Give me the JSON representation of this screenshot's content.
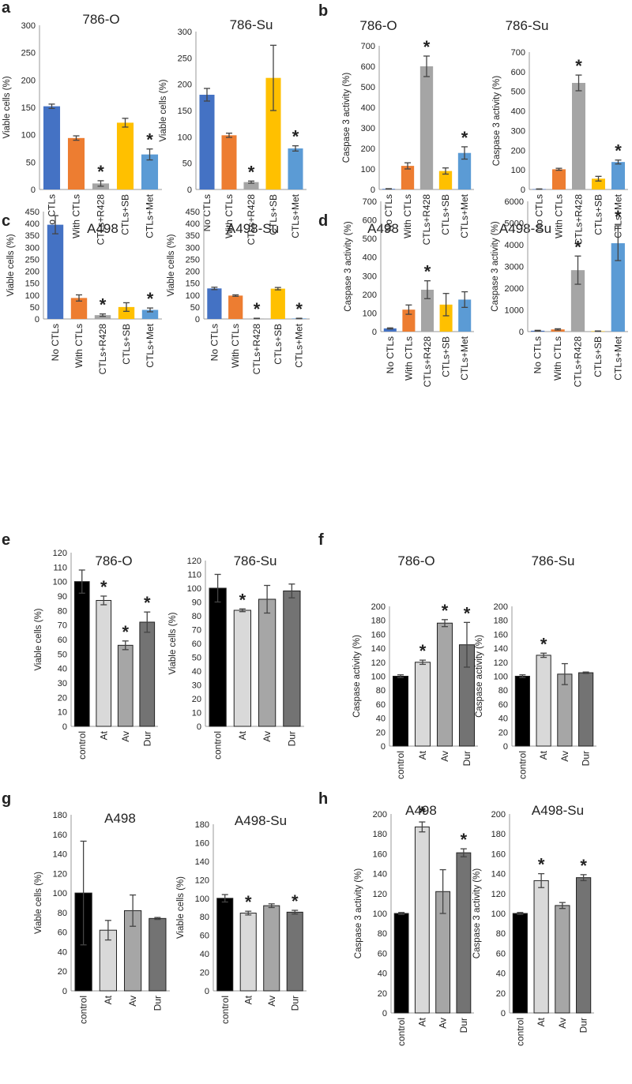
{
  "chart_data": [
    {
      "panel": "a",
      "type": "bar",
      "title": "786-O",
      "ylabel": "Viable cells (%)",
      "ylim": [
        0,
        300
      ],
      "yticks": [
        0,
        50,
        100,
        150,
        200,
        250,
        300
      ],
      "categories": [
        "No CTLs",
        "With CTLs",
        "CTLs+R428",
        "CTLs+SB",
        "CTLs+Met"
      ],
      "values": [
        152,
        94,
        11,
        122,
        64
      ],
      "errors": [
        4,
        4,
        5,
        8,
        10
      ],
      "significant": [
        false,
        false,
        true,
        false,
        true
      ],
      "colors": [
        "#4472C4",
        "#ED7D31",
        "#A5A5A5",
        "#FFC000",
        "#5B9BD5"
      ]
    },
    {
      "panel": "",
      "type": "bar",
      "title": "786-Su",
      "ylabel": "Viable cells (%)",
      "ylim": [
        0,
        300
      ],
      "yticks": [
        0,
        50,
        100,
        150,
        200,
        250,
        300
      ],
      "categories": [
        "No CTLs",
        "With CTLs",
        "CTLs+R428",
        "CTLs+SB",
        "CTLs+Met"
      ],
      "values": [
        180,
        103,
        14,
        212,
        78
      ],
      "errors": [
        12,
        4,
        2,
        62,
        5
      ],
      "significant": [
        false,
        false,
        true,
        false,
        true
      ],
      "colors": [
        "#4472C4",
        "#ED7D31",
        "#A5A5A5",
        "#FFC000",
        "#5B9BD5"
      ]
    },
    {
      "panel": "b",
      "type": "bar",
      "title": "786-O",
      "ylabel": "Caspase 3 activity (%)",
      "ylim": [
        0,
        700
      ],
      "yticks": [
        0,
        100,
        200,
        300,
        400,
        500,
        600,
        700
      ],
      "categories": [
        "No CTLs",
        "With CTLs",
        "CTLs+R428",
        "CTLs+SB",
        "CTLs+Met"
      ],
      "values": [
        3,
        115,
        600,
        90,
        178
      ],
      "errors": [
        1,
        15,
        50,
        15,
        30
      ],
      "significant": [
        false,
        false,
        true,
        false,
        true
      ],
      "colors": [
        "#4472C4",
        "#ED7D31",
        "#A5A5A5",
        "#FFC000",
        "#5B9BD5"
      ]
    },
    {
      "panel": "",
      "type": "bar",
      "title": "786-Su",
      "ylabel": "Caspase 3 activity (%)",
      "ylim": [
        0,
        700
      ],
      "yticks": [
        0,
        100,
        200,
        300,
        400,
        500,
        600,
        700
      ],
      "categories": [
        "No CTLs",
        "With CTLs",
        "CTLs+R428",
        "CTLs+SB",
        "CTLs+Met"
      ],
      "values": [
        2,
        103,
        543,
        55,
        140
      ],
      "errors": [
        1,
        5,
        40,
        12,
        10
      ],
      "significant": [
        false,
        false,
        true,
        false,
        true
      ],
      "colors": [
        "#4472C4",
        "#ED7D31",
        "#A5A5A5",
        "#FFC000",
        "#5B9BD5"
      ]
    },
    {
      "panel": "c",
      "type": "bar",
      "title": "A498",
      "ylabel": "Viable cells (%)",
      "ylim": [
        0,
        450
      ],
      "yticks": [
        0,
        50,
        100,
        150,
        200,
        250,
        300,
        350,
        400,
        450
      ],
      "categories": [
        "No CTLs",
        "With CTLs",
        "CTLs+R428",
        "CTLs+SB",
        "CTLs+Met"
      ],
      "values": [
        395,
        88,
        16,
        50,
        38
      ],
      "errors": [
        38,
        13,
        5,
        18,
        8
      ],
      "significant": [
        false,
        false,
        true,
        false,
        true
      ],
      "colors": [
        "#4472C4",
        "#ED7D31",
        "#A5A5A5",
        "#FFC000",
        "#5B9BD5"
      ]
    },
    {
      "panel": "",
      "type": "bar",
      "title": "A498-Su",
      "ylabel": "Viable cells (%)",
      "ylim": [
        0,
        450
      ],
      "yticks": [
        0,
        50,
        100,
        150,
        200,
        250,
        300,
        350,
        400,
        450
      ],
      "categories": [
        "No CTLs",
        "With CTLs",
        "CTLs+R428",
        "CTLs+SB",
        "CTLs+Met"
      ],
      "values": [
        128,
        98,
        2,
        127,
        2
      ],
      "errors": [
        5,
        3,
        1,
        5,
        1
      ],
      "significant": [
        false,
        false,
        true,
        false,
        true
      ],
      "colors": [
        "#4472C4",
        "#ED7D31",
        "#A5A5A5",
        "#FFC000",
        "#5B9BD5"
      ]
    },
    {
      "panel": "d",
      "type": "bar",
      "title": "A498",
      "ylabel": "Caspase 3 activity (%)",
      "ylim": [
        0,
        700
      ],
      "yticks": [
        0,
        100,
        200,
        300,
        400,
        500,
        600,
        700
      ],
      "categories": [
        "No CTLs",
        "With CTLs",
        "CTLs+R428",
        "CTLs+SB",
        "CTLs+Met"
      ],
      "values": [
        17,
        118,
        225,
        145,
        172
      ],
      "errors": [
        3,
        25,
        48,
        60,
        42
      ],
      "significant": [
        false,
        false,
        true,
        false,
        false
      ],
      "colors": [
        "#4472C4",
        "#ED7D31",
        "#A5A5A5",
        "#FFC000",
        "#5B9BD5"
      ]
    },
    {
      "panel": "",
      "type": "bar",
      "title": "A498-Su",
      "ylabel": "Caspase 3 activity (%)",
      "ylim": [
        0,
        6000
      ],
      "yticks": [
        0,
        1000,
        2000,
        3000,
        4000,
        5000,
        6000
      ],
      "categories": [
        "No CTLs",
        "With CTLs",
        "CTLs+R428",
        "CTLs+SB",
        "CTLs+Met"
      ],
      "values": [
        40,
        100,
        2830,
        20,
        4070
      ],
      "errors": [
        20,
        30,
        650,
        10,
        800
      ],
      "significant": [
        false,
        false,
        true,
        false,
        true
      ],
      "colors": [
        "#4472C4",
        "#ED7D31",
        "#A5A5A5",
        "#FFC000",
        "#5B9BD5"
      ]
    },
    {
      "panel": "e",
      "type": "bar",
      "title": "786-O",
      "ylabel": "Viable cells (%)",
      "ylim": [
        0,
        120
      ],
      "yticks": [
        0,
        10,
        20,
        30,
        40,
        50,
        60,
        70,
        80,
        90,
        100,
        110,
        120
      ],
      "categories": [
        "control",
        "At",
        "Av",
        "Dur"
      ],
      "values": [
        100,
        87,
        56,
        72
      ],
      "errors": [
        8,
        3,
        3,
        7
      ],
      "significant": [
        false,
        true,
        true,
        true
      ],
      "colors": [
        "#000000",
        "#D9D9D9",
        "#A6A6A6",
        "#737373"
      ]
    },
    {
      "panel": "",
      "type": "bar",
      "title": "786-Su",
      "ylabel": "Viable cells (%)",
      "ylim": [
        0,
        120
      ],
      "yticks": [
        0,
        10,
        20,
        30,
        40,
        50,
        60,
        70,
        80,
        90,
        100,
        110,
        120
      ],
      "categories": [
        "control",
        "At",
        "Av",
        "Dur"
      ],
      "values": [
        100,
        84,
        92,
        98
      ],
      "errors": [
        10,
        1,
        10,
        5
      ],
      "significant": [
        false,
        true,
        false,
        false
      ],
      "colors": [
        "#000000",
        "#D9D9D9",
        "#A6A6A6",
        "#737373"
      ]
    },
    {
      "panel": "f",
      "type": "bar",
      "title": "786-O",
      "ylabel": "Caspase activity (%)",
      "ylim": [
        0,
        200
      ],
      "yticks": [
        0,
        20,
        40,
        60,
        80,
        100,
        120,
        140,
        160,
        180,
        200
      ],
      "categories": [
        "control",
        "At",
        "Av",
        "Dur"
      ],
      "values": [
        100,
        120,
        176,
        145
      ],
      "errors": [
        2,
        3,
        5,
        32
      ],
      "significant": [
        false,
        true,
        true,
        true
      ],
      "colors": [
        "#000000",
        "#D9D9D9",
        "#A6A6A6",
        "#737373"
      ]
    },
    {
      "panel": "",
      "type": "bar",
      "title": "786-Su",
      "ylabel": "Caspase activity (%)",
      "ylim": [
        0,
        200
      ],
      "yticks": [
        0,
        20,
        40,
        60,
        80,
        100,
        120,
        140,
        160,
        180,
        200
      ],
      "categories": [
        "control",
        "At",
        "Av",
        "Dur"
      ],
      "values": [
        100,
        130,
        103,
        105
      ],
      "errors": [
        2,
        3,
        15,
        1
      ],
      "significant": [
        false,
        true,
        false,
        false
      ],
      "colors": [
        "#000000",
        "#D9D9D9",
        "#A6A6A6",
        "#737373"
      ]
    },
    {
      "panel": "g",
      "type": "bar",
      "title": "A498",
      "ylabel": "Viable cells (%)",
      "ylim": [
        0,
        180
      ],
      "yticks": [
        0,
        20,
        40,
        60,
        80,
        100,
        120,
        140,
        160,
        180
      ],
      "categories": [
        "control",
        "At",
        "Av",
        "Dur"
      ],
      "values": [
        100,
        62,
        82,
        74
      ],
      "errors": [
        53,
        10,
        16,
        1
      ],
      "significant": [
        false,
        false,
        false,
        false
      ],
      "colors": [
        "#000000",
        "#D9D9D9",
        "#A6A6A6",
        "#737373"
      ]
    },
    {
      "panel": "",
      "type": "bar",
      "title": "A498-Su",
      "ylabel": "Viable cells (%)",
      "ylim": [
        0,
        180
      ],
      "yticks": [
        0,
        20,
        40,
        60,
        80,
        100,
        120,
        140,
        160,
        180
      ],
      "categories": [
        "control",
        "At",
        "Av",
        "Dur"
      ],
      "values": [
        100,
        84,
        92,
        85
      ],
      "errors": [
        4,
        2,
        2,
        2
      ],
      "significant": [
        false,
        true,
        false,
        true
      ],
      "colors": [
        "#000000",
        "#D9D9D9",
        "#A6A6A6",
        "#737373"
      ]
    },
    {
      "panel": "h",
      "type": "bar",
      "title": "A498",
      "ylabel": "Caspase 3 activity (%)",
      "ylim": [
        0,
        200
      ],
      "yticks": [
        0,
        20,
        40,
        60,
        80,
        100,
        120,
        140,
        160,
        180,
        200
      ],
      "categories": [
        "control",
        "At",
        "Av",
        "Dur"
      ],
      "values": [
        100,
        187,
        122,
        161
      ],
      "errors": [
        1,
        5,
        22,
        4
      ],
      "significant": [
        false,
        true,
        false,
        true
      ],
      "colors": [
        "#000000",
        "#D9D9D9",
        "#A6A6A6",
        "#737373"
      ]
    },
    {
      "panel": "",
      "type": "bar",
      "title": "A498-Su",
      "ylabel": "Caspase 3 activity (%)",
      "ylim": [
        0,
        200
      ],
      "yticks": [
        0,
        20,
        40,
        60,
        80,
        100,
        120,
        140,
        160,
        180,
        200
      ],
      "categories": [
        "control",
        "At",
        "Av",
        "Dur"
      ],
      "values": [
        100,
        133,
        108,
        136
      ],
      "errors": [
        1,
        7,
        3,
        3
      ],
      "significant": [
        false,
        true,
        false,
        true
      ],
      "colors": [
        "#000000",
        "#D9D9D9",
        "#A6A6A6",
        "#737373"
      ]
    }
  ],
  "significance_marker": "*"
}
